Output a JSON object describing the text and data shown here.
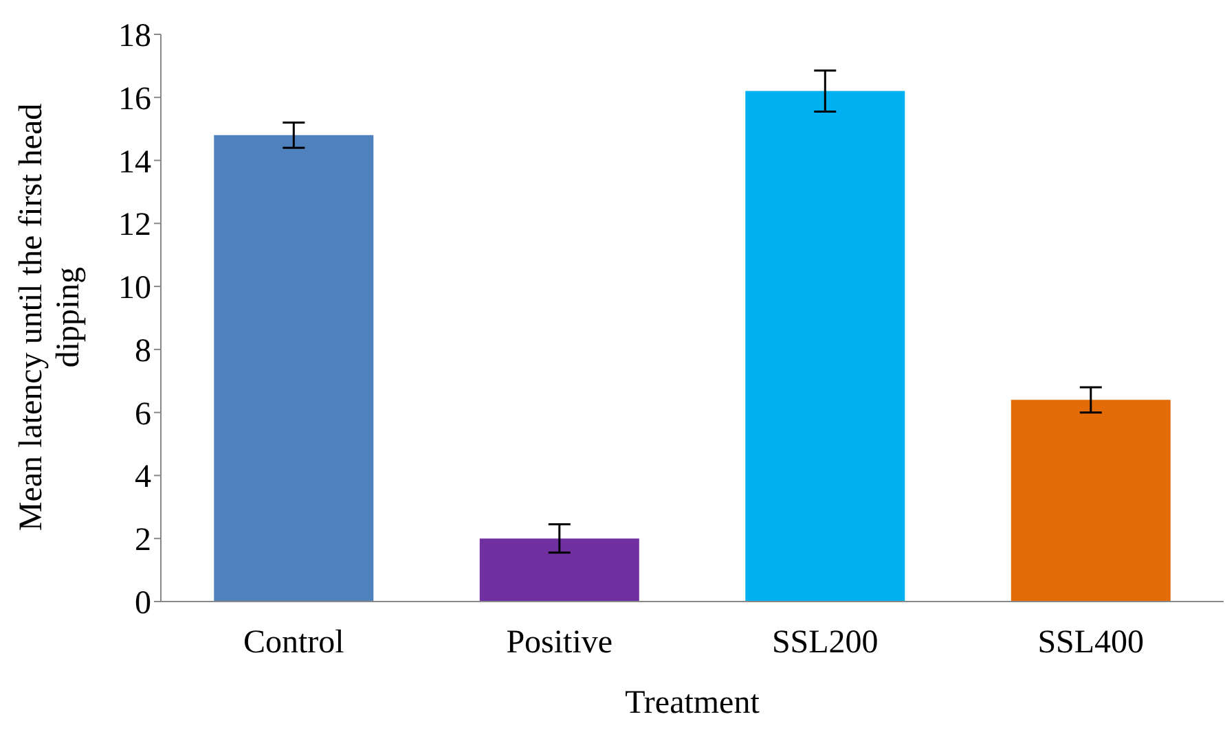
{
  "chart_data": {
    "type": "bar",
    "xlabel": "Treatment",
    "ylabel": "Mean latency  until the first head dipping",
    "categories": [
      "Control",
      "Positive",
      "SSL200",
      "SSL400"
    ],
    "values": [
      14.8,
      2.0,
      16.2,
      6.4
    ],
    "errors": [
      0.4,
      0.45,
      0.65,
      0.4
    ],
    "colors": [
      "#4f81bd",
      "#7030a0",
      "#00b0f0",
      "#e36c09"
    ],
    "ylim": [
      0,
      18
    ],
    "yticks": [
      0,
      2,
      4,
      6,
      8,
      10,
      12,
      14,
      16,
      18
    ],
    "grid": false,
    "legend": false
  }
}
